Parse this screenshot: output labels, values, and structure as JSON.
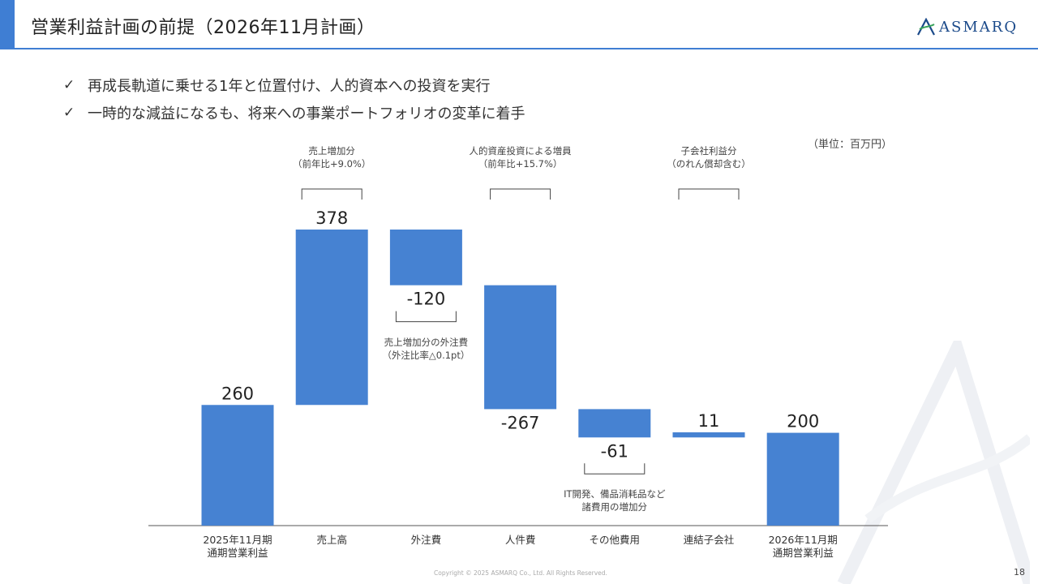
{
  "header": {
    "title": "営業利益計画の前提（2026年11月計画）",
    "logo_text": "ASMARQ",
    "accent_color": "#3f7ed3"
  },
  "bullets": [
    "再成長軌道に乗せる1年と位置付け、人的資本への投資を実行",
    "一時的な減益になるも、将来への事業ポートフォリオの変革に着手"
  ],
  "unit_label": "（単位：百万円）",
  "chart_data": {
    "type": "waterfall",
    "bar_color": "#4682d2",
    "categories": [
      "2025年11月期\n通期営業利益",
      "売上高",
      "外注費",
      "人件費",
      "その他費用",
      "連結子会社",
      "2026年11月期\n通期営業利益"
    ],
    "values": [
      260,
      378,
      -120,
      -267,
      -61,
      11,
      200
    ],
    "kinds": [
      "total",
      "delta",
      "delta",
      "delta",
      "delta",
      "delta",
      "total"
    ],
    "value_labels": [
      "260",
      "378",
      "-120",
      "-267",
      "-61",
      "11",
      "200"
    ],
    "ylim": [
      0,
      650
    ]
  },
  "annotations": [
    {
      "category_index": 1,
      "position": "above",
      "lines": [
        "売上増加分",
        "（前年比+9.0%）"
      ]
    },
    {
      "category_index": 2,
      "position": "below",
      "lines": [
        "売上増加分の外注費",
        "（外注比率△0.1pt）"
      ]
    },
    {
      "category_index": 3,
      "position": "above",
      "lines": [
        "人的資産投資による増員",
        "（前年比+15.7%）"
      ]
    },
    {
      "category_index": 4,
      "position": "below",
      "lines": [
        "IT開発、備品消耗品など",
        "諸費用の増加分"
      ]
    },
    {
      "category_index": 5,
      "position": "above",
      "lines": [
        "子会社利益分",
        "（のれん償却含む）"
      ]
    }
  ],
  "footer": {
    "copyright": "Copyright © 2025 ASMARQ Co., Ltd. All Rights Reserved.",
    "page_number": "18"
  }
}
